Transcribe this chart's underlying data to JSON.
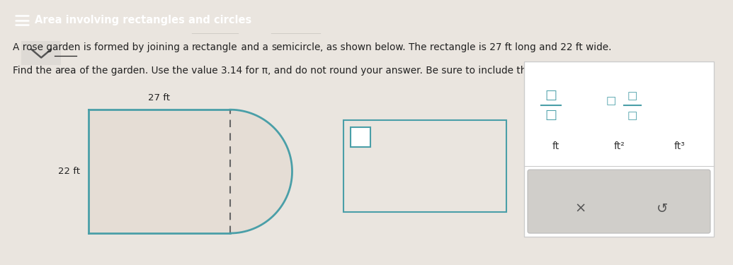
{
  "title": "Area involving rectangles and circles",
  "title_bg": "#29b5c2",
  "title_color": "#ffffff",
  "line1_parts": [
    {
      "text": "A rose garden is formed by joining a ",
      "underline": false
    },
    {
      "text": "rectangle",
      "underline": true
    },
    {
      "text": " and a ",
      "underline": false
    },
    {
      "text": "semicircle",
      "underline": true
    },
    {
      "text": ", as shown below. The rectangle is 27 ft long and 22 ft wide.",
      "underline": false
    }
  ],
  "line2_parts": [
    {
      "text": "Find the ",
      "underline": false
    },
    {
      "text": "area",
      "underline": true
    },
    {
      "text": " of the garden. Use the value 3.14 for π, and do not round your answer. Be sure to include the correct unit in your answer.",
      "underline": false
    }
  ],
  "shape_color": "#4a9fa8",
  "shape_fill": "#e5ddd5",
  "rect_label_top": "27 ft",
  "rect_label_left": "22 ft",
  "dashed_color": "#666666",
  "answer_box_bg": "#eae5df",
  "answer_box_border": "#4a9fa8",
  "small_box_border": "#4a9fa8",
  "units_panel_bg": "#ffffff",
  "units_panel_border": "#cccccc",
  "fraction_color": "#4a9fa8",
  "units_color": "#333333",
  "bottom_bar_bg": "#d0ceca",
  "bottom_bar_border": "#bbbbbb",
  "symbol_color": "#555555",
  "bg_color": "#eae5df",
  "text_color": "#222222",
  "chevron_color": "#555555"
}
